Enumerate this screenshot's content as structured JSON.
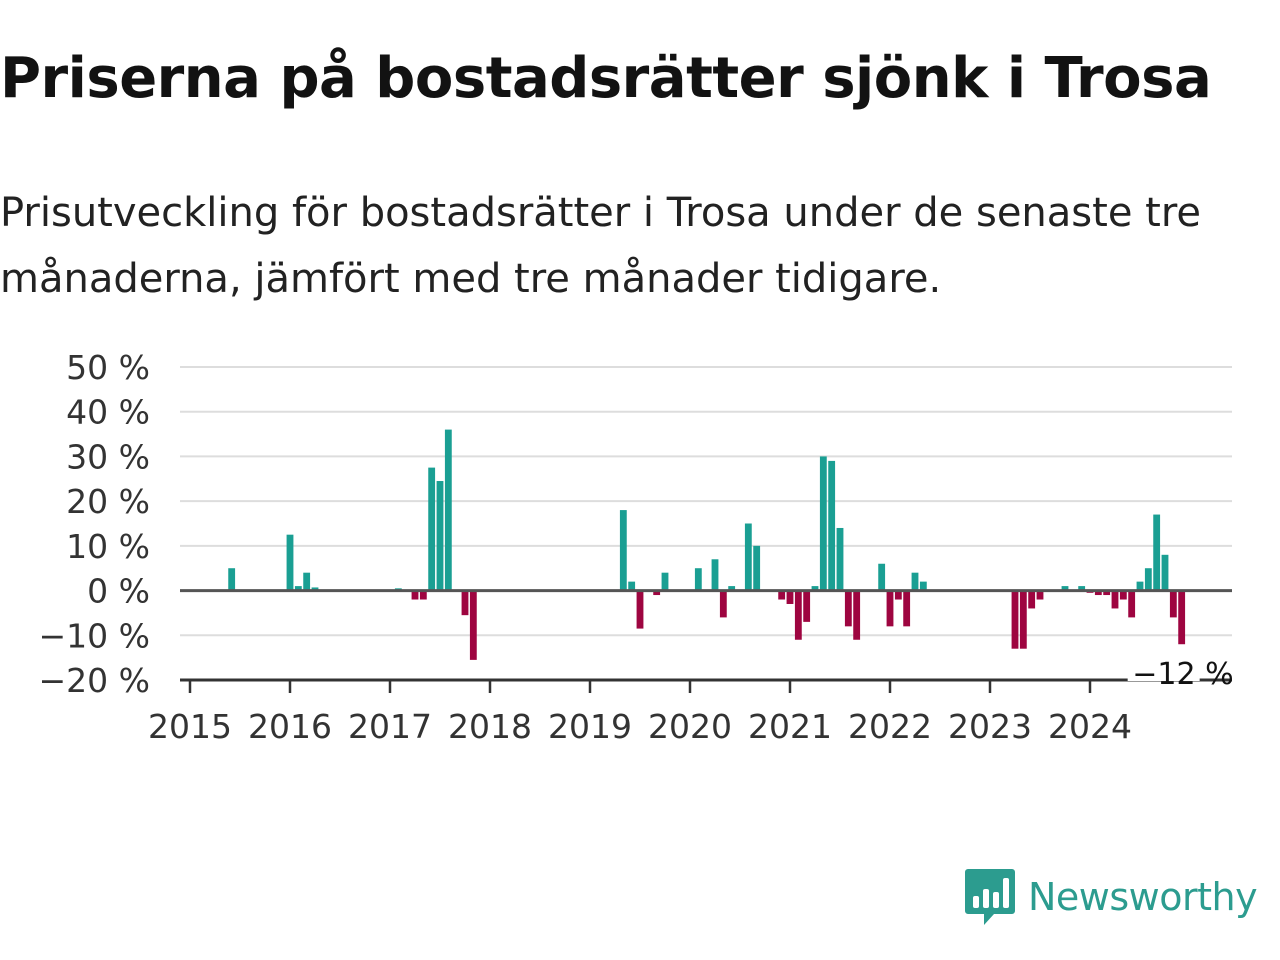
{
  "title": "Priserna på bostadsrätter sjönk i Trosa",
  "subtitle": "Prisutveckling för bostadsrätter i Trosa under de senaste tre månaderna, jämfört med tre månader tidigare.",
  "brand": {
    "name": "Newsworthy",
    "icon": "newsworthy-logo-icon"
  },
  "colors": {
    "positive": "#1a9f93",
    "negative": "#9e0540",
    "grid": "#dddddd",
    "zero_line": "#555555",
    "brand": "#2c9c8f"
  },
  "chart_data": {
    "type": "bar",
    "title": "Priserna på bostadsrätter sjönk i Trosa",
    "xlabel": "",
    "ylabel": "",
    "x_unit": "month",
    "ylim": [
      -20,
      50
    ],
    "yticks": [
      50,
      40,
      30,
      20,
      10,
      0,
      -10,
      -20
    ],
    "ytick_labels": [
      "50 %",
      "40 %",
      "30 %",
      "20 %",
      "10 %",
      "0 %",
      "−10 %",
      "−20 %"
    ],
    "xticks": [
      "2015",
      "2016",
      "2017",
      "2018",
      "2019",
      "2020",
      "2021",
      "2022",
      "2023",
      "2024"
    ],
    "grid": true,
    "legend": "none",
    "end_label": "−12 %",
    "series": [
      {
        "values": [
          {
            "x": "2015-06",
            "y": 5
          },
          {
            "x": "2016-01",
            "y": 12.5
          },
          {
            "x": "2016-02",
            "y": 1
          },
          {
            "x": "2016-03",
            "y": 4
          },
          {
            "x": "2016-04",
            "y": 0.7
          },
          {
            "x": "2017-02",
            "y": 0.5
          },
          {
            "x": "2017-04",
            "y": -2
          },
          {
            "x": "2017-05",
            "y": -2
          },
          {
            "x": "2017-06",
            "y": 27.5
          },
          {
            "x": "2017-07",
            "y": 24.5
          },
          {
            "x": "2017-08",
            "y": 36
          },
          {
            "x": "2017-10",
            "y": -5.5
          },
          {
            "x": "2017-11",
            "y": -15.5
          },
          {
            "x": "2019-05",
            "y": 18
          },
          {
            "x": "2019-06",
            "y": 2
          },
          {
            "x": "2019-07",
            "y": -8.5
          },
          {
            "x": "2019-09",
            "y": -1
          },
          {
            "x": "2019-10",
            "y": 4
          },
          {
            "x": "2020-02",
            "y": 5
          },
          {
            "x": "2020-04",
            "y": 7
          },
          {
            "x": "2020-05",
            "y": -6
          },
          {
            "x": "2020-06",
            "y": 1
          },
          {
            "x": "2020-08",
            "y": 15
          },
          {
            "x": "2020-09",
            "y": 10
          },
          {
            "x": "2020-12",
            "y": -2
          },
          {
            "x": "2021-01",
            "y": -3
          },
          {
            "x": "2021-02",
            "y": -11
          },
          {
            "x": "2021-03",
            "y": -7
          },
          {
            "x": "2021-04",
            "y": 1
          },
          {
            "x": "2021-05",
            "y": 30
          },
          {
            "x": "2021-06",
            "y": 29
          },
          {
            "x": "2021-07",
            "y": 14
          },
          {
            "x": "2021-08",
            "y": -8
          },
          {
            "x": "2021-09",
            "y": -11
          },
          {
            "x": "2021-12",
            "y": 6
          },
          {
            "x": "2022-01",
            "y": -8
          },
          {
            "x": "2022-02",
            "y": -2
          },
          {
            "x": "2022-03",
            "y": -8
          },
          {
            "x": "2022-04",
            "y": 4
          },
          {
            "x": "2022-05",
            "y": 2
          },
          {
            "x": "2023-04",
            "y": -13
          },
          {
            "x": "2023-05",
            "y": -13
          },
          {
            "x": "2023-06",
            "y": -4
          },
          {
            "x": "2023-07",
            "y": -2
          },
          {
            "x": "2023-10",
            "y": 1
          },
          {
            "x": "2023-12",
            "y": 1
          },
          {
            "x": "2024-01",
            "y": -0.5
          },
          {
            "x": "2024-02",
            "y": -1
          },
          {
            "x": "2024-03",
            "y": -1
          },
          {
            "x": "2024-04",
            "y": -4
          },
          {
            "x": "2024-05",
            "y": -2
          },
          {
            "x": "2024-06",
            "y": -6
          },
          {
            "x": "2024-07",
            "y": 2
          },
          {
            "x": "2024-08",
            "y": 5
          },
          {
            "x": "2024-09",
            "y": 17
          },
          {
            "x": "2024-10",
            "y": 8
          },
          {
            "x": "2024-11",
            "y": -6
          },
          {
            "x": "2024-12",
            "y": -12
          }
        ]
      }
    ]
  }
}
